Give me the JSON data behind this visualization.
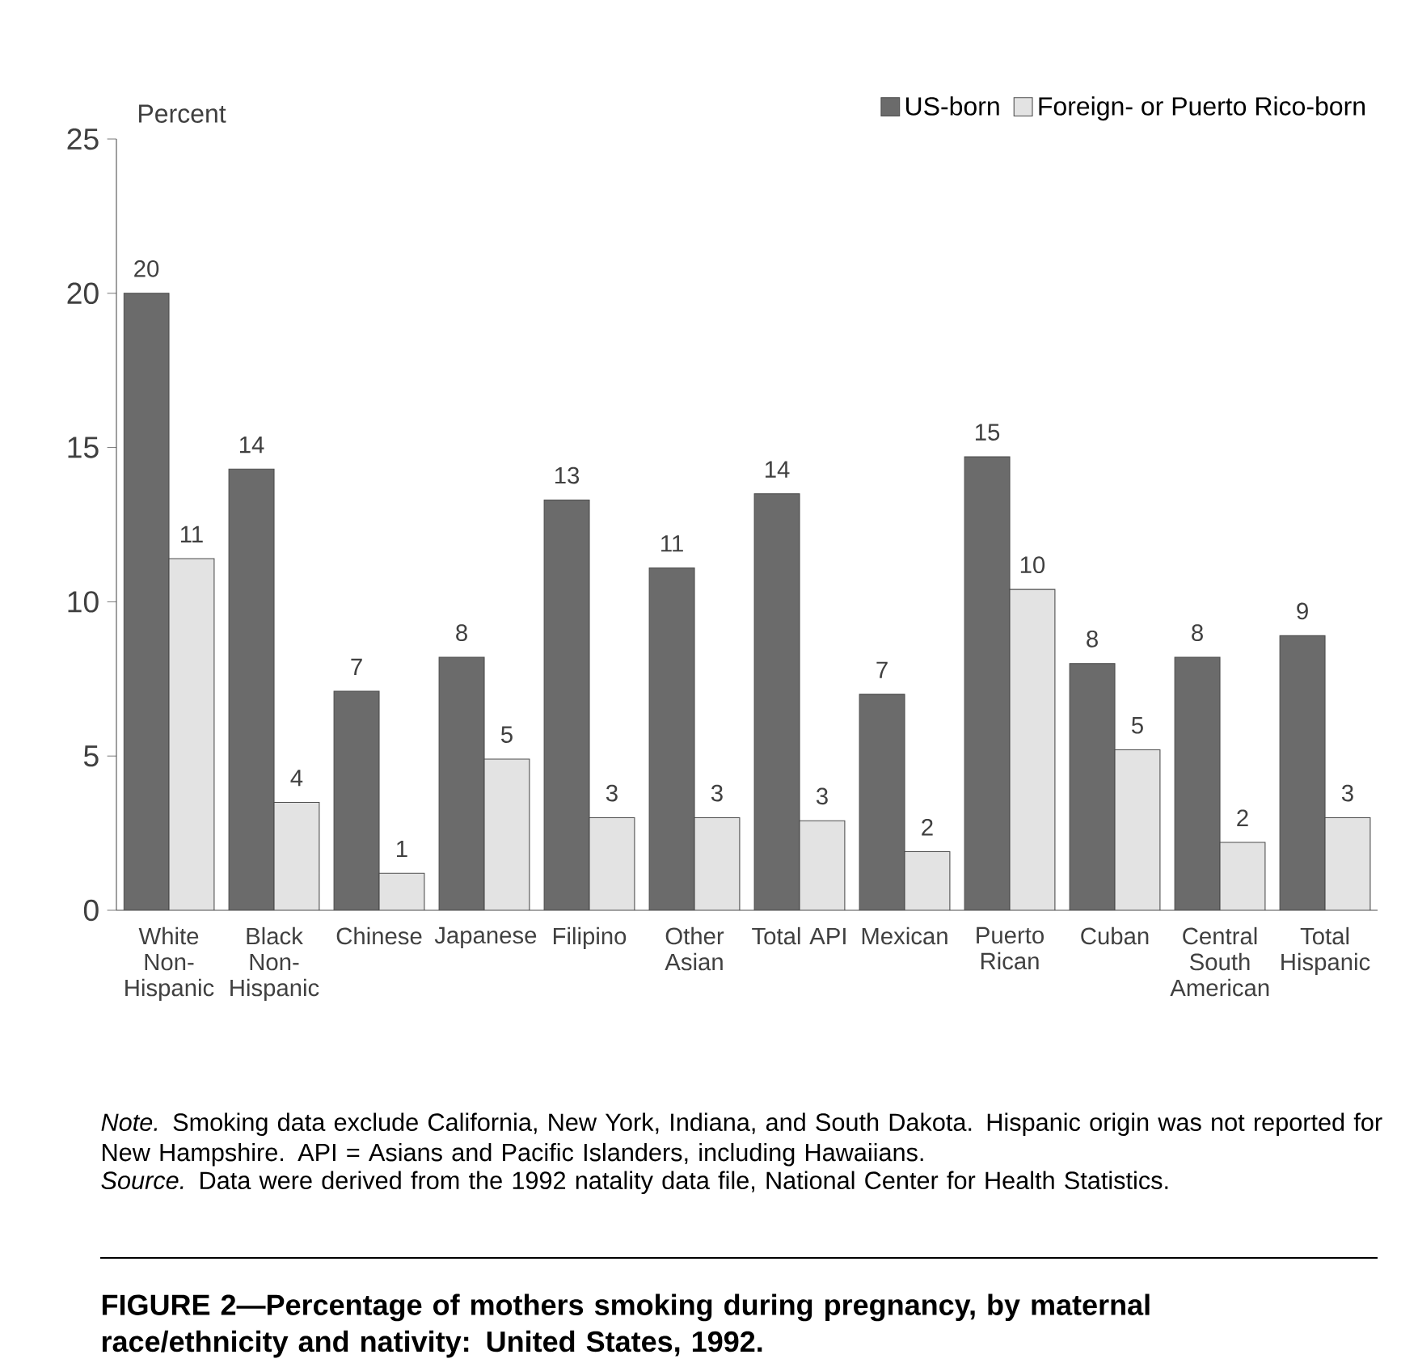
{
  "chart_data": {
    "type": "bar",
    "title": "FIGURE 2—Percentage of mothers smoking during pregnancy, by maternal race/ethnicity and nativity: United States, 1992.",
    "ylabel": "Percent",
    "categories": [
      "White Non-Hispanic",
      "Black Non-Hispanic",
      "Chinese",
      "Japanese",
      "Filipino",
      "Other Asian",
      "Total API",
      "Mexican",
      "Puerto Rican",
      "Cuban",
      "Central South American",
      "Total Hispanic"
    ],
    "series": [
      {
        "name": "US-born",
        "color": "#6b6b6b",
        "values": [
          20.0,
          14.3,
          7.1,
          8.2,
          13.3,
          11.1,
          13.5,
          7.0,
          14.7,
          8.0,
          8.2,
          8.9
        ],
        "value_labels": [
          "20",
          "14",
          "7",
          "8",
          "13",
          "11",
          "14",
          "7",
          "15",
          "8",
          "8",
          "9"
        ]
      },
      {
        "name": "Foreign- or Puerto Rico-born",
        "color": "#e3e3e3",
        "values": [
          11.4,
          3.5,
          1.2,
          4.9,
          3.0,
          3.0,
          2.9,
          1.9,
          10.4,
          5.2,
          2.2,
          3.0
        ],
        "value_labels": [
          "11",
          "4",
          "1",
          "5",
          "3",
          "3",
          "3",
          "2",
          "10",
          "5",
          "2",
          "3"
        ]
      }
    ],
    "ylim": [
      0,
      25
    ],
    "yticks": [
      0,
      5,
      10,
      15,
      20,
      25
    ],
    "legend": "top right",
    "annotations": [
      "*Note.* Smoking data exclude California, New York, Indiana, and South Dakota. Hispanic origin was not reported for New Hampshire. API = Asians and Pacific Islanders, including Hawaiians.",
      "*Source.* Data were derived from the 1992 natality data file, National Center for Health Statistics."
    ]
  }
}
